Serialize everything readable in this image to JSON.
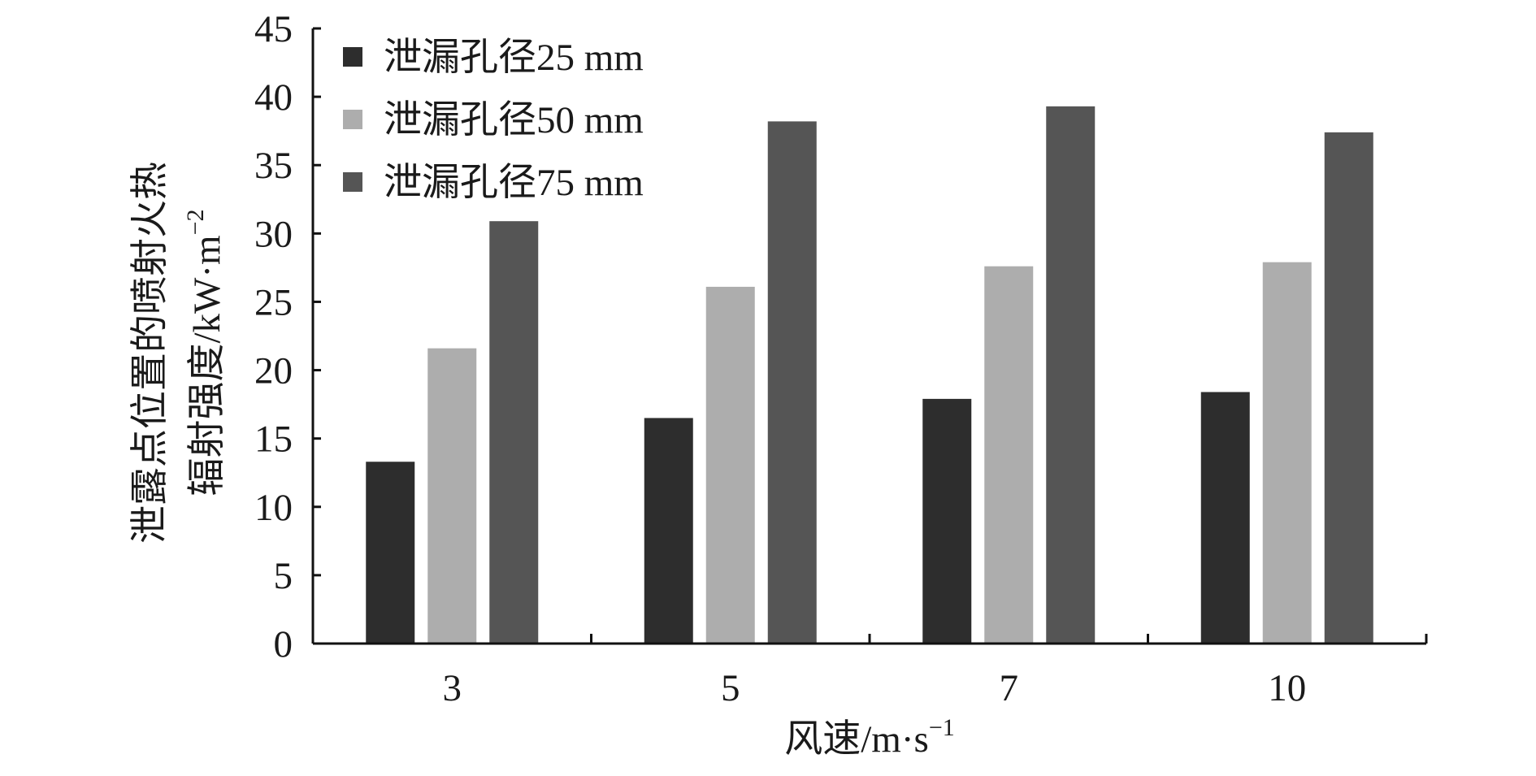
{
  "chart_data": {
    "type": "bar",
    "title": "",
    "xlabel": "风速/m·s",
    "xlabel_superscript": "−1",
    "ylabel_line1": "泄露点位置的喷射火热",
    "ylabel_line2": "辐射强度/kW·m",
    "ylabel_superscript": "−2",
    "categories": [
      "3",
      "5",
      "7",
      "10"
    ],
    "ylim": [
      0,
      45
    ],
    "yticks": [
      0,
      5,
      10,
      15,
      20,
      25,
      30,
      35,
      40,
      45
    ],
    "grid": false,
    "legend_position": "top-left",
    "series": [
      {
        "name": "泄漏孔径25 mm",
        "color": "#2d2d2d",
        "values": [
          13.3,
          16.5,
          17.9,
          18.4
        ]
      },
      {
        "name": "泄漏孔径50 mm",
        "color": "#adadad",
        "values": [
          21.6,
          26.1,
          27.6,
          27.9
        ]
      },
      {
        "name": "泄漏孔径75 mm",
        "color": "#555555",
        "values": [
          30.9,
          38.2,
          39.3,
          37.4
        ]
      }
    ]
  }
}
